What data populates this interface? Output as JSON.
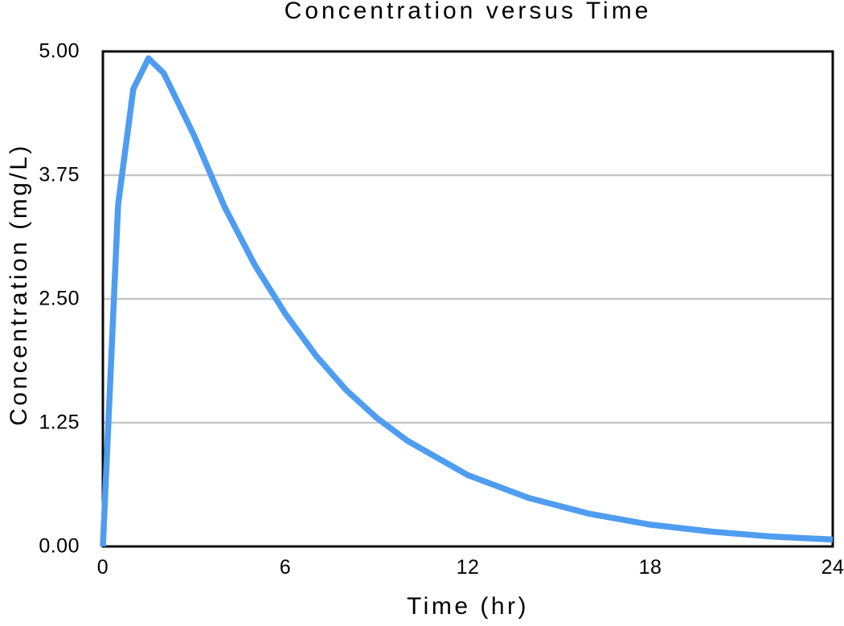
{
  "chart_data": {
    "type": "line",
    "title": "Concentration versus Time",
    "xlabel": "Time (hr)",
    "ylabel": "Concentration (mg/L)",
    "xlim": [
      0,
      24
    ],
    "ylim": [
      0,
      5
    ],
    "xticks": {
      "values": [
        0,
        6,
        12,
        18,
        24
      ],
      "labels": [
        "0",
        "6",
        "12",
        "18",
        "24"
      ]
    },
    "yticks": {
      "values": [
        0,
        1.25,
        2.5,
        3.75,
        5
      ],
      "labels": [
        "0.00",
        "1.25",
        "2.50",
        "3.75",
        "5.00"
      ]
    },
    "grid": "horizontal-only",
    "legend": false,
    "plot_border": "full-box",
    "series": [
      {
        "name": "Concentration",
        "x": [
          0,
          0.5,
          1,
          1.5,
          2,
          3,
          4,
          5,
          6,
          7,
          8,
          9,
          10,
          12,
          14,
          16,
          18,
          20,
          22,
          24
        ],
        "y": [
          0.0,
          3.45,
          4.62,
          4.93,
          4.78,
          4.15,
          3.43,
          2.84,
          2.35,
          1.93,
          1.58,
          1.3,
          1.07,
          0.72,
          0.49,
          0.33,
          0.22,
          0.15,
          0.1,
          0.07
        ]
      }
    ],
    "annotations": {
      "peak_value": 4.93,
      "peak_time_hr": 1.5
    },
    "colors": {
      "line": "#4E9DF0",
      "grid": "#C6C6C6",
      "axis": "#0A0A0A",
      "text": "#000000",
      "background": "#FFFFFF"
    }
  }
}
